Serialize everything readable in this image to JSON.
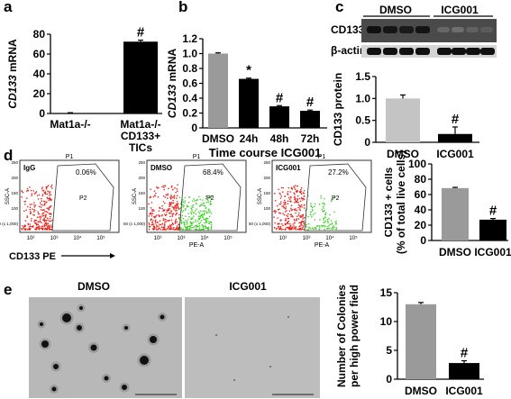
{
  "panel_labels": [
    "a",
    "b",
    "c",
    "d",
    "e"
  ],
  "colors": {
    "black": "#000000",
    "gray": "#9a9a9a",
    "light_gray": "#c4c4c4",
    "red": "#e8241c",
    "green": "#42d12a",
    "micrograph": "#b9b9b9"
  },
  "chart_data": [
    {
      "panel": "a",
      "type": "bar",
      "categories": [
        "Mat1a-/-",
        "Mat1a-/-\nCD133+\nTICs"
      ],
      "values": [
        0.3,
        72.5
      ],
      "errors": [
        0.5,
        1.5
      ],
      "colors": [
        "#000000",
        "#000000"
      ],
      "annotations": [
        "",
        "#"
      ],
      "ylabel": "CD133 mRNA",
      "ylim": [
        0,
        80
      ],
      "yticks": [
        0,
        20,
        40,
        60,
        80
      ]
    },
    {
      "panel": "b",
      "type": "bar",
      "categories": [
        "DMSO",
        "24h",
        "48h",
        "72h"
      ],
      "values": [
        1.0,
        0.66,
        0.29,
        0.23
      ],
      "errors": [
        0.01,
        0.01,
        0.01,
        0.01
      ],
      "colors": [
        "#9a9a9a",
        "#000000",
        "#000000",
        "#000000"
      ],
      "annotations": [
        "",
        "*",
        "#",
        "#"
      ],
      "ylabel": "CD133 mRNA",
      "xlabel": "Time course ICG001",
      "ylim": [
        0,
        1.2
      ],
      "yticks": [
        "0",
        "0.2",
        "0.4",
        "0.6",
        "0.8",
        "1.0",
        "1.2"
      ]
    },
    {
      "panel": "c",
      "type": "bar",
      "categories": [
        "DMSO",
        "ICG001"
      ],
      "values": [
        1.0,
        0.19
      ],
      "errors": [
        0.08,
        0.16
      ],
      "colors": [
        "#c4c4c4",
        "#000000"
      ],
      "annotations": [
        "",
        "#"
      ],
      "ylabel": "CD133 protein",
      "ylim": [
        0,
        1.5
      ],
      "yticks": [
        "0",
        "0.5",
        "1.0",
        "1.5"
      ]
    },
    {
      "panel": "d",
      "type": "bar",
      "categories": [
        "DMSO",
        "ICG001"
      ],
      "values": [
        68.4,
        27.2
      ],
      "errors": [
        1.0,
        1.5
      ],
      "colors": [
        "#9a9a9a",
        "#000000"
      ],
      "annotations": [
        "",
        "#"
      ],
      "ylabel_lines": [
        "CD133 + cells",
        "(% of total live cells)"
      ],
      "ylim": [
        0,
        100
      ],
      "yticks": [
        0,
        20,
        40,
        60,
        80,
        100
      ]
    },
    {
      "panel": "e",
      "type": "bar",
      "categories": [
        "DMSO",
        "ICG001"
      ],
      "values": [
        13.0,
        2.8
      ],
      "errors": [
        0.3,
        0.4
      ],
      "colors": [
        "#9a9a9a",
        "#000000"
      ],
      "annotations": [
        "",
        "#"
      ],
      "ylabel_lines": [
        "Number of Colonies",
        "per high power field"
      ],
      "ylim": [
        0,
        15
      ],
      "yticks": [
        0,
        5,
        10,
        15
      ]
    }
  ],
  "western": {
    "groups": [
      "DMSO",
      "ICG001"
    ],
    "bands": [
      "CD133",
      "β-actin"
    ]
  },
  "flow": {
    "plots": [
      {
        "name": "IgG",
        "percent": "0.06%",
        "gate_top": "P1",
        "gate_inner": "P2",
        "green": 0
      },
      {
        "name": "DMSO",
        "percent": "68.4%",
        "gate_top": "P1",
        "gate_inner": "P2",
        "green": 1
      },
      {
        "name": "ICG001",
        "percent": "27.2%",
        "gate_top": "P1",
        "gate_inner": "P2",
        "green": 0.45
      }
    ],
    "y_axis_label": "SSC-A",
    "x_axis_label": "PE-A",
    "x_marker": "CD133 PE",
    "tick_labels": [
      "10²",
      "10³",
      "10⁴",
      "10⁵"
    ],
    "y_tick_labels": [
      "50 (x 1,000)",
      "100",
      "150",
      "200",
      "250"
    ]
  },
  "micrographs": {
    "labels": [
      "DMSO",
      "ICG001"
    ]
  }
}
